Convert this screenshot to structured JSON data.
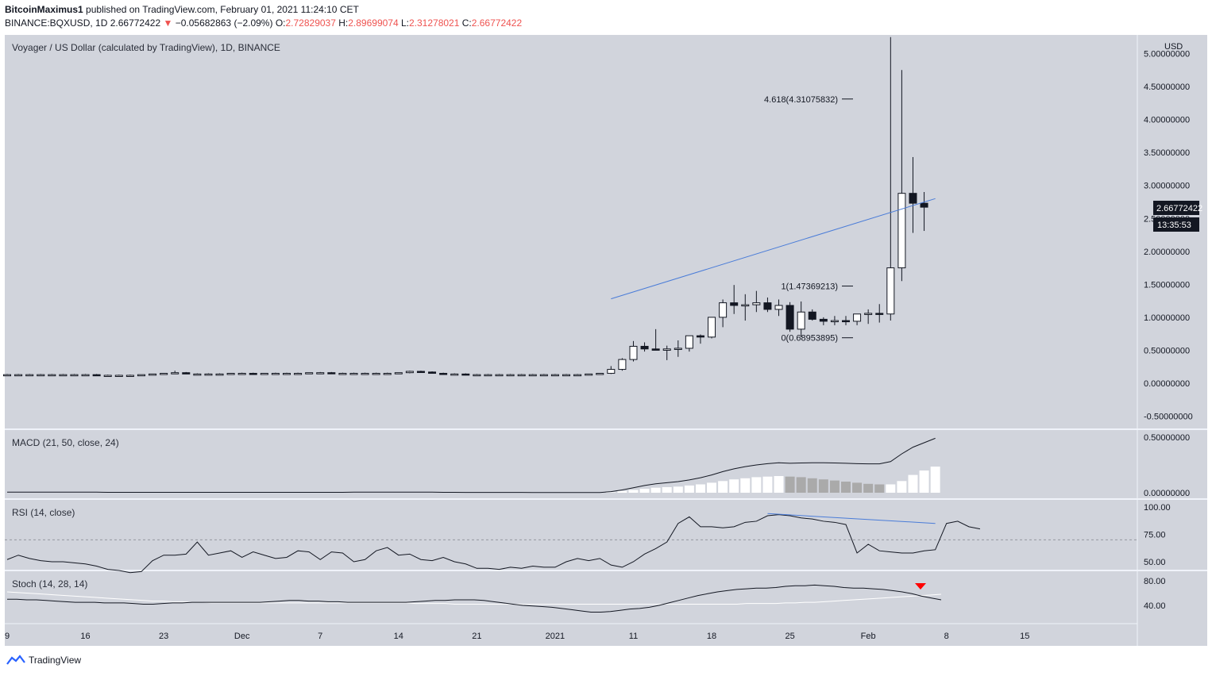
{
  "header": {
    "line1": {
      "author": "BitcoinMaximus1",
      "rest": "published on TradingView.com, February 01, 2021 11:24:10 CET"
    },
    "line2": {
      "symbol": "BINANCE:BQXUSD, 1D",
      "price": "2.66772422",
      "change_arrow": "▼",
      "change": "−0.05682863 (−2.09%)",
      "o_label": "O:",
      "o": "2.72829037",
      "h_label": "H:",
      "h": "2.89699074",
      "l_label": "L:",
      "l": "2.31278021",
      "c_label": "C:",
      "c": "2.66772422"
    }
  },
  "main_pane": {
    "title": "Voyager / US Dollar (calculated by TradingView), 1D, BINANCE",
    "currency": "USD",
    "price_tag": "2.66772422",
    "countdown": "13:35:53"
  },
  "macd_pane": {
    "title": "MACD (21, 50, close, 24)"
  },
  "rsi_pane": {
    "title": "RSI (14, close)"
  },
  "stoch_pane": {
    "title": "Stoch (14, 28, 14)"
  },
  "footer": {
    "brand": "TradingView"
  },
  "colors": {
    "pane_bg": "#d1d4dc",
    "candle_up": "#ffffff",
    "candle_down": "#131722",
    "trendline": "#4a7cd8",
    "signal_arrow": "#ff0000",
    "macd_hist_up": "#ffffff",
    "macd_hist_fall": "#aaaaaa"
  },
  "chart_data": [
    {
      "type": "candlestick",
      "title": "Voyager / US Dollar (calculated by TradingView), 1D, BINANCE",
      "x_tick_labels": [
        "9",
        "16",
        "23",
        "Dec",
        "7",
        "14",
        "21",
        "2021",
        "11",
        "18",
        "25",
        "Feb",
        "8",
        "15"
      ],
      "y_tick_labels": [
        "5.00000000",
        "4.50000000",
        "4.00000000",
        "3.50000000",
        "3.00000000",
        "2.50000000",
        "2.00000000",
        "1.50000000",
        "1.00000000",
        "0.50000000",
        "0.00000000",
        "-0.50000000"
      ],
      "ylim": [
        -0.55,
        5.1
      ],
      "fib_levels": [
        {
          "label": "4.618(4.31075832)",
          "value": 4.31075832
        },
        {
          "label": "1(1.47369213)",
          "value": 1.47369213
        },
        {
          "label": "0(0.68953895)",
          "value": 0.68953895
        }
      ],
      "trendline": {
        "from": {
          "day": 54,
          "value": 1.28
        },
        "to": {
          "day": 83,
          "value": 2.8
        }
      },
      "candles": [
        [
          0.13,
          0.14,
          0.12,
          0.13
        ],
        [
          0.13,
          0.14,
          0.12,
          0.13
        ],
        [
          0.13,
          0.14,
          0.12,
          0.13
        ],
        [
          0.13,
          0.14,
          0.12,
          0.13
        ],
        [
          0.13,
          0.14,
          0.12,
          0.13
        ],
        [
          0.13,
          0.14,
          0.12,
          0.13
        ],
        [
          0.13,
          0.14,
          0.12,
          0.13
        ],
        [
          0.13,
          0.14,
          0.12,
          0.13
        ],
        [
          0.13,
          0.14,
          0.12,
          0.12
        ],
        [
          0.12,
          0.13,
          0.11,
          0.12
        ],
        [
          0.12,
          0.13,
          0.11,
          0.12
        ],
        [
          0.12,
          0.13,
          0.11,
          0.12
        ],
        [
          0.12,
          0.13,
          0.11,
          0.13
        ],
        [
          0.13,
          0.14,
          0.12,
          0.14
        ],
        [
          0.14,
          0.15,
          0.13,
          0.15
        ],
        [
          0.15,
          0.19,
          0.14,
          0.16
        ],
        [
          0.16,
          0.17,
          0.14,
          0.14
        ],
        [
          0.14,
          0.15,
          0.13,
          0.14
        ],
        [
          0.14,
          0.15,
          0.13,
          0.14
        ],
        [
          0.14,
          0.15,
          0.13,
          0.14
        ],
        [
          0.14,
          0.15,
          0.13,
          0.15
        ],
        [
          0.15,
          0.16,
          0.14,
          0.15
        ],
        [
          0.15,
          0.16,
          0.14,
          0.14
        ],
        [
          0.14,
          0.15,
          0.13,
          0.15
        ],
        [
          0.15,
          0.16,
          0.14,
          0.15
        ],
        [
          0.15,
          0.16,
          0.14,
          0.15
        ],
        [
          0.15,
          0.16,
          0.14,
          0.15
        ],
        [
          0.15,
          0.16,
          0.14,
          0.16
        ],
        [
          0.16,
          0.17,
          0.15,
          0.16
        ],
        [
          0.16,
          0.17,
          0.15,
          0.15
        ],
        [
          0.15,
          0.16,
          0.14,
          0.15
        ],
        [
          0.15,
          0.16,
          0.14,
          0.15
        ],
        [
          0.15,
          0.16,
          0.14,
          0.15
        ],
        [
          0.15,
          0.16,
          0.14,
          0.15
        ],
        [
          0.15,
          0.16,
          0.14,
          0.15
        ],
        [
          0.15,
          0.16,
          0.14,
          0.16
        ],
        [
          0.16,
          0.19,
          0.15,
          0.18
        ],
        [
          0.18,
          0.19,
          0.16,
          0.17
        ],
        [
          0.17,
          0.18,
          0.15,
          0.15
        ],
        [
          0.15,
          0.16,
          0.14,
          0.14
        ],
        [
          0.14,
          0.15,
          0.13,
          0.14
        ],
        [
          0.14,
          0.15,
          0.12,
          0.13
        ],
        [
          0.13,
          0.14,
          0.12,
          0.13
        ],
        [
          0.13,
          0.14,
          0.12,
          0.13
        ],
        [
          0.13,
          0.14,
          0.12,
          0.13
        ],
        [
          0.13,
          0.14,
          0.12,
          0.13
        ],
        [
          0.13,
          0.14,
          0.12,
          0.13
        ],
        [
          0.13,
          0.14,
          0.12,
          0.13
        ],
        [
          0.13,
          0.14,
          0.12,
          0.13
        ],
        [
          0.13,
          0.14,
          0.12,
          0.13
        ],
        [
          0.13,
          0.14,
          0.12,
          0.13
        ],
        [
          0.13,
          0.14,
          0.12,
          0.13
        ],
        [
          0.13,
          0.14,
          0.12,
          0.14
        ],
        [
          0.14,
          0.15,
          0.13,
          0.15
        ],
        [
          0.15,
          0.26,
          0.14,
          0.21
        ],
        [
          0.21,
          0.38,
          0.19,
          0.36
        ],
        [
          0.36,
          0.64,
          0.33,
          0.56
        ],
        [
          0.56,
          0.62,
          0.48,
          0.52
        ],
        [
          0.52,
          0.82,
          0.5,
          0.5
        ],
        [
          0.5,
          0.57,
          0.35,
          0.52
        ],
        [
          0.52,
          0.65,
          0.4,
          0.53
        ],
        [
          0.53,
          0.72,
          0.48,
          0.72
        ],
        [
          0.72,
          0.74,
          0.6,
          0.7
        ],
        [
          0.7,
          1.0,
          0.68,
          1.0
        ],
        [
          1.0,
          1.27,
          0.85,
          1.22
        ],
        [
          1.22,
          1.49,
          1.05,
          1.18
        ],
        [
          1.18,
          1.35,
          0.95,
          1.19
        ],
        [
          1.19,
          1.4,
          1.08,
          1.22
        ],
        [
          1.22,
          1.3,
          1.08,
          1.12
        ],
        [
          1.12,
          1.27,
          1.02,
          1.18
        ],
        [
          1.18,
          1.23,
          0.78,
          0.82
        ],
        [
          0.82,
          1.24,
          0.7,
          1.08
        ],
        [
          1.08,
          1.12,
          0.95,
          0.97
        ],
        [
          0.97,
          1.0,
          0.88,
          0.94
        ],
        [
          0.94,
          1.02,
          0.88,
          0.95
        ],
        [
          0.95,
          1.02,
          0.88,
          0.94
        ],
        [
          0.94,
          1.03,
          0.88,
          1.05
        ],
        [
          1.05,
          1.12,
          0.9,
          1.06
        ],
        [
          1.06,
          1.2,
          0.92,
          1.05
        ],
        [
          1.05,
          5.25,
          0.95,
          1.75
        ],
        [
          1.75,
          4.75,
          1.55,
          2.88
        ],
        [
          2.88,
          3.43,
          2.28,
          2.73
        ],
        [
          2.73,
          2.9,
          2.31,
          2.67
        ]
      ]
    },
    {
      "type": "bar",
      "title": "MACD (21, 50, close, 24)",
      "y_tick_labels": [
        "0.50000000",
        "0.00000000"
      ],
      "ylim": [
        -0.02,
        0.55
      ],
      "series": [
        {
          "name": "MACD",
          "values": [
            0.005,
            0.005,
            0.005,
            0.005,
            0.005,
            0.005,
            0.005,
            0.005,
            0.005,
            0.004,
            0.004,
            0.004,
            0.004,
            0.004,
            0.004,
            0.004,
            0.004,
            0.004,
            0.004,
            0.004,
            0.004,
            0.004,
            0.004,
            0.004,
            0.004,
            0.004,
            0.004,
            0.004,
            0.004,
            0.004,
            0.004,
            0.005,
            0.005,
            0.005,
            0.005,
            0.005,
            0.005,
            0.005,
            0.005,
            0.004,
            0.004,
            0.003,
            0.003,
            0.003,
            0.003,
            0.003,
            0.003,
            0.002,
            0.002,
            0.002,
            0.002,
            0.002,
            0.002,
            0.002,
            0.01,
            0.025,
            0.045,
            0.065,
            0.08,
            0.09,
            0.1,
            0.115,
            0.135,
            0.16,
            0.19,
            0.215,
            0.235,
            0.25,
            0.262,
            0.27,
            0.265,
            0.268,
            0.27,
            0.27,
            0.268,
            0.265,
            0.262,
            0.26,
            0.26,
            0.28,
            0.35,
            0.41,
            0.45,
            0.49
          ]
        },
        {
          "name": "Histogram",
          "values": [
            0,
            0,
            0,
            0,
            0,
            0,
            0,
            0,
            0,
            0,
            0,
            0,
            0,
            0,
            0,
            0,
            0,
            0,
            0,
            0,
            0,
            0,
            0,
            0,
            0,
            0,
            0,
            0,
            0,
            0,
            0,
            0,
            0,
            0,
            0,
            0,
            0,
            0,
            0,
            0,
            0,
            0,
            0,
            0,
            0,
            0,
            0,
            0,
            0,
            0,
            0,
            0,
            0,
            0,
            0.005,
            0.015,
            0.025,
            0.035,
            0.045,
            0.05,
            0.055,
            0.065,
            0.075,
            0.09,
            0.105,
            0.12,
            0.13,
            0.14,
            0.145,
            0.15,
            0.145,
            0.14,
            0.13,
            0.12,
            0.11,
            0.1,
            0.09,
            0.08,
            0.075,
            0.075,
            0.105,
            0.16,
            0.2,
            0.235
          ]
        }
      ]
    },
    {
      "type": "line",
      "title": "RSI (14, close)",
      "y_tick_labels": [
        "100.00",
        "75.00",
        "50.00"
      ],
      "ylim": [
        40,
        105
      ],
      "series": [
        {
          "name": "RSI",
          "values": [
            52,
            56,
            53,
            51,
            50,
            50,
            49,
            48,
            46,
            43,
            42,
            40,
            41,
            51,
            56,
            56,
            57,
            68,
            56,
            58,
            60,
            54,
            59,
            56,
            53,
            54,
            60,
            59,
            52,
            59,
            58,
            50,
            52,
            60,
            63,
            56,
            57,
            52,
            51,
            54,
            50,
            48,
            44,
            44,
            43,
            45,
            44,
            46,
            45,
            45,
            50,
            53,
            51,
            53,
            47,
            45,
            50,
            57,
            62,
            68,
            85,
            91,
            82,
            82,
            81,
            82,
            86,
            87,
            92,
            93,
            92,
            90,
            89,
            87,
            86,
            84,
            58,
            66,
            60,
            59,
            58,
            58,
            60,
            61,
            85
          ]
        },
        {
          "name": "RSI-end",
          "values": [
            87,
            82,
            80
          ]
        }
      ],
      "trendline": {
        "from": {
          "day": 68,
          "value": 94
        },
        "to": {
          "day": 83,
          "value": 85
        }
      }
    },
    {
      "type": "line",
      "title": "Stoch (14, 28, 14)",
      "y_tick_labels": [
        "80.00",
        "40.00"
      ],
      "ylim": [
        20,
        95
      ],
      "series": [
        {
          "name": "%K",
          "values": [
            50,
            50,
            49,
            49,
            48,
            47,
            46,
            45,
            45,
            45,
            44,
            44,
            44,
            43,
            42,
            42,
            43,
            44,
            44,
            45,
            45,
            45,
            45,
            45,
            45,
            45,
            45,
            46,
            47,
            48,
            48,
            47,
            47,
            46,
            46,
            45,
            45,
            45,
            45,
            45,
            45,
            45,
            46,
            47,
            48,
            48,
            49,
            49,
            49,
            48,
            46,
            44,
            42,
            40,
            39,
            38,
            37,
            35,
            33,
            31,
            29,
            29,
            30,
            32,
            34,
            35,
            37,
            40,
            44,
            48,
            52,
            56,
            59,
            62,
            64,
            66,
            67,
            68,
            68,
            69,
            71,
            72,
            72,
            73,
            72,
            71,
            69,
            68,
            68,
            67,
            66,
            64,
            62,
            59,
            55,
            52,
            49
          ]
        },
        {
          "name": "%D",
          "values": [
            62,
            61,
            60,
            59,
            58,
            57,
            56,
            55,
            54,
            53,
            52,
            51,
            50,
            49,
            48,
            47,
            47,
            46,
            46,
            45,
            45,
            44,
            44,
            44,
            44,
            44,
            44,
            44,
            44,
            44,
            44,
            44,
            44,
            44,
            44,
            44,
            44,
            44,
            44,
            44,
            44,
            44,
            43,
            43,
            43,
            43,
            42,
            42,
            42,
            42,
            42,
            42,
            42,
            42,
            42,
            42,
            42,
            42,
            42,
            42,
            42,
            42,
            42,
            42,
            42,
            42,
            42,
            42,
            42,
            42,
            42,
            42,
            42,
            42,
            42,
            42,
            43,
            43,
            43,
            43,
            44,
            44,
            45,
            45,
            46,
            47,
            48,
            49,
            50,
            51,
            52,
            53,
            54,
            55,
            56,
            57,
            58
          ]
        }
      ]
    }
  ]
}
